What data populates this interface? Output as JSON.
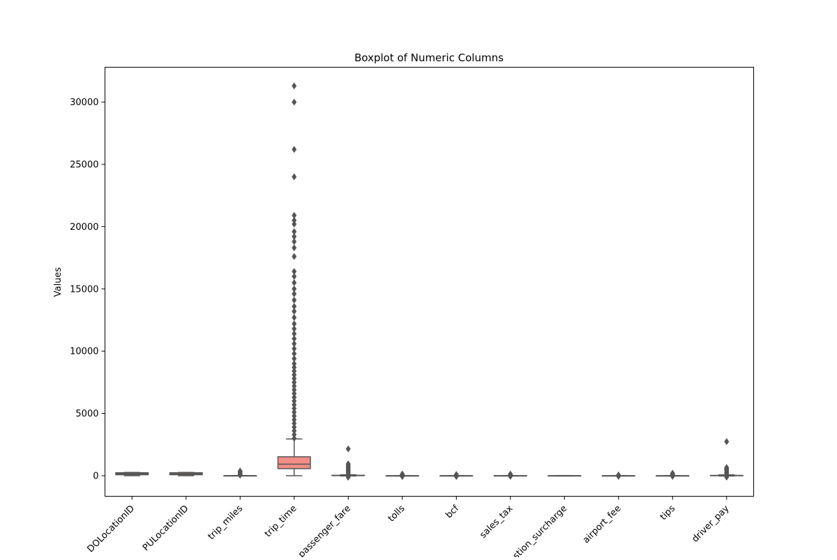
{
  "chart_data": {
    "type": "box",
    "title": "Boxplot of Numeric Columns",
    "xlabel": "",
    "ylabel": "Values",
    "ylim": [
      -1650,
      32800
    ],
    "yticks": [
      0,
      5000,
      10000,
      15000,
      20000,
      25000,
      30000
    ],
    "grid": false,
    "legend": "none",
    "categories": [
      "DOLocationID",
      "PULocationID",
      "trip_miles",
      "trip_time",
      "base_passenger_fare",
      "tolls",
      "bcf",
      "sales_tax",
      "congestion_surcharge",
      "airport_fee",
      "tips",
      "driver_pay"
    ],
    "colors": {
      "DOLocationID": "#5975a4",
      "PULocationID": "#cc8963",
      "trip_miles": "#5f9e6e",
      "trip_time": "#f28e86",
      "base_passenger_fare": "#857aab",
      "tolls": "#8d7866",
      "bcf": "#d095bf",
      "sales_tax": "#8c8c8c",
      "congestion_surcharge": "#c1b37f",
      "airport_fee": "#71aec0",
      "tips": "#5975a4",
      "driver_pay": "#cc8963",
      "line": "#555555"
    },
    "boxes": [
      {
        "name": "DOLocationID",
        "q1": 80,
        "median": 150,
        "q3": 240,
        "whisker_low": 1,
        "whisker_high": 265,
        "outliers": []
      },
      {
        "name": "PULocationID",
        "q1": 80,
        "median": 150,
        "q3": 240,
        "whisker_low": 1,
        "whisker_high": 265,
        "outliers": []
      },
      {
        "name": "trip_miles",
        "q1": 1.5,
        "median": 3,
        "q3": 6,
        "whisker_low": 0,
        "whisker_high": 13,
        "outliers": [
          40,
          90,
          150,
          220,
          300,
          380
        ]
      },
      {
        "name": "trip_time",
        "q1": 570,
        "median": 930,
        "q3": 1520,
        "whisker_low": 0,
        "whisker_high": 2950,
        "outliers": [
          3000,
          3300,
          3600,
          3900,
          4200,
          4500,
          4800,
          5100,
          5400,
          5700,
          6000,
          6300,
          6600,
          6900,
          7200,
          7500,
          7800,
          8100,
          8400,
          8700,
          9000,
          9400,
          9800,
          10200,
          10600,
          11000,
          11400,
          11800,
          12200,
          12700,
          13200,
          13600,
          14100,
          14600,
          15000,
          15500,
          16000,
          16400,
          17600,
          18300,
          18800,
          19200,
          19600,
          20200,
          20500,
          20900,
          24000,
          26200,
          30000,
          31300
        ]
      },
      {
        "name": "base_passenger_fare",
        "q1": 12,
        "median": 20,
        "q3": 35,
        "whisker_low": -20,
        "whisker_high": 80,
        "outliers": [
          -120,
          150,
          250,
          350,
          450,
          550,
          650,
          750,
          850,
          950,
          2150
        ]
      },
      {
        "name": "tolls",
        "q1": 0,
        "median": 0,
        "q3": 0,
        "whisker_low": 0,
        "whisker_high": 0,
        "outliers": [
          -60,
          20,
          60,
          100,
          140
        ]
      },
      {
        "name": "bcf",
        "q1": 0.3,
        "median": 0.6,
        "q3": 1,
        "whisker_low": 0,
        "whisker_high": 2,
        "outliers": [
          -60,
          20,
          60,
          100
        ]
      },
      {
        "name": "sales_tax",
        "q1": 1,
        "median": 1.8,
        "q3": 3,
        "whisker_low": 0,
        "whisker_high": 6,
        "outliers": [
          -50,
          20,
          60,
          100,
          130
        ]
      },
      {
        "name": "congestion_surcharge",
        "q1": 0,
        "median": 0,
        "q3": 2.75,
        "whisker_low": 0,
        "whisker_high": 5.5,
        "outliers": []
      },
      {
        "name": "airport_fee",
        "q1": 0,
        "median": 0,
        "q3": 0,
        "whisker_low": 0,
        "whisker_high": 0,
        "outliers": [
          -50,
          20,
          60
        ]
      },
      {
        "name": "tips",
        "q1": 0,
        "median": 0,
        "q3": 0,
        "whisker_low": 0,
        "whisker_high": 0,
        "outliers": [
          -50,
          20,
          60,
          100,
          150,
          200
        ]
      },
      {
        "name": "driver_pay",
        "q1": 9,
        "median": 15,
        "q3": 27,
        "whisker_low": -20,
        "whisker_high": 70,
        "outliers": [
          -110,
          100,
          180,
          260,
          340,
          420,
          500,
          580,
          660,
          2740
        ]
      }
    ]
  }
}
